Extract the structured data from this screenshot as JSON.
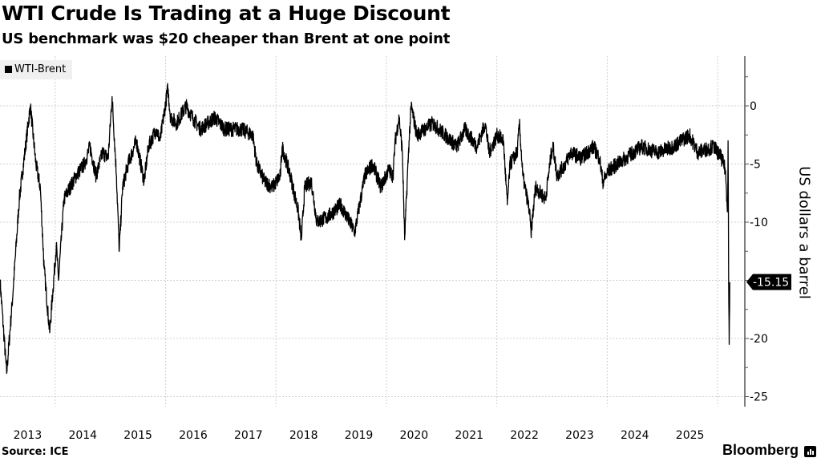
{
  "chart_data": {
    "type": "line",
    "title": "WTI Crude Is Trading at a Huge Discount",
    "subtitle": "US benchmark was $20 cheaper than Brent at one point",
    "ylabel": "US dollars a barrel",
    "xlabel": "",
    "legend": {
      "entries": [
        "WTI-Brent"
      ],
      "placement": "top-left"
    },
    "ylim": [
      -25.7,
      4.3
    ],
    "xlim": [
      2013.0,
      2026.25
    ],
    "yticks": [
      0,
      -5,
      -10,
      -15,
      -20,
      -25
    ],
    "ytick_labels": [
      "0",
      "-5",
      "-10",
      "-15",
      "-20",
      "-25"
    ],
    "xtick_labels": [
      "2013",
      "2014",
      "2015",
      "2016",
      "2017",
      "2018",
      "2019",
      "2020",
      "2021",
      "2022",
      "2023",
      "2024",
      "2025"
    ],
    "grid": true,
    "last_value_label": "-15.15",
    "series": [
      {
        "name": "WTI-Brent",
        "color": "#000000",
        "points": [
          [
            2013.0,
            -15
          ],
          [
            2013.12,
            -23
          ],
          [
            2013.22,
            -17
          ],
          [
            2013.35,
            -8
          ],
          [
            2013.45,
            -4
          ],
          [
            2013.55,
            0
          ],
          [
            2013.65,
            -5
          ],
          [
            2013.73,
            -7
          ],
          [
            2013.8,
            -14
          ],
          [
            2013.9,
            -19.5
          ],
          [
            2014.02,
            -12
          ],
          [
            2014.06,
            -15
          ],
          [
            2014.16,
            -8
          ],
          [
            2014.38,
            -6
          ],
          [
            2014.53,
            -5
          ],
          [
            2014.63,
            -3.5
          ],
          [
            2014.74,
            -6
          ],
          [
            2014.86,
            -4
          ],
          [
            2014.96,
            -4.5
          ],
          [
            2015.03,
            0.8
          ],
          [
            2015.11,
            -6
          ],
          [
            2015.16,
            -12.5
          ],
          [
            2015.22,
            -7
          ],
          [
            2015.32,
            -5
          ],
          [
            2015.47,
            -3
          ],
          [
            2015.61,
            -6.5
          ],
          [
            2015.69,
            -3.5
          ],
          [
            2015.83,
            -2
          ],
          [
            2015.9,
            -3
          ],
          [
            2016.04,
            1.5
          ],
          [
            2016.09,
            -1
          ],
          [
            2016.2,
            -1.5
          ],
          [
            2016.37,
            0
          ],
          [
            2016.49,
            -1
          ],
          [
            2016.63,
            -2
          ],
          [
            2016.89,
            -1
          ],
          [
            2017.07,
            -2
          ],
          [
            2017.36,
            -2
          ],
          [
            2017.58,
            -2.5
          ],
          [
            2017.65,
            -5
          ],
          [
            2017.79,
            -6.5
          ],
          [
            2017.94,
            -7
          ],
          [
            2018.08,
            -6
          ],
          [
            2018.11,
            -3.5
          ],
          [
            2018.26,
            -6
          ],
          [
            2018.4,
            -9
          ],
          [
            2018.46,
            -11.5
          ],
          [
            2018.52,
            -7
          ],
          [
            2018.64,
            -6.5
          ],
          [
            2018.74,
            -10
          ],
          [
            2018.95,
            -9.5
          ],
          [
            2019.17,
            -8.5
          ],
          [
            2019.39,
            -10.5
          ],
          [
            2019.42,
            -11
          ],
          [
            2019.61,
            -6
          ],
          [
            2019.75,
            -5
          ],
          [
            2019.9,
            -7
          ],
          [
            2020.04,
            -5.5
          ],
          [
            2020.12,
            -6
          ],
          [
            2020.16,
            -3
          ],
          [
            2020.23,
            -1
          ],
          [
            2020.29,
            -4
          ],
          [
            2020.33,
            -11.5
          ],
          [
            2020.41,
            -3
          ],
          [
            2020.45,
            0
          ],
          [
            2020.55,
            -2.5
          ],
          [
            2020.84,
            -1.5
          ],
          [
            2021.06,
            -2.5
          ],
          [
            2021.28,
            -3.5
          ],
          [
            2021.42,
            -2
          ],
          [
            2021.64,
            -3.5
          ],
          [
            2021.79,
            -1.5
          ],
          [
            2021.86,
            -4
          ],
          [
            2022.01,
            -2.5
          ],
          [
            2022.12,
            -3
          ],
          [
            2022.19,
            -8.5
          ],
          [
            2022.24,
            -5
          ],
          [
            2022.37,
            -4
          ],
          [
            2022.41,
            -1.5
          ],
          [
            2022.47,
            -6
          ],
          [
            2022.59,
            -9
          ],
          [
            2022.62,
            -11
          ],
          [
            2022.7,
            -7
          ],
          [
            2022.88,
            -8
          ],
          [
            2022.99,
            -4
          ],
          [
            2023.02,
            -3.5
          ],
          [
            2023.09,
            -6
          ],
          [
            2023.24,
            -5
          ],
          [
            2023.34,
            -4
          ],
          [
            2023.53,
            -4.5
          ],
          [
            2023.75,
            -3.5
          ],
          [
            2023.86,
            -4.5
          ],
          [
            2023.92,
            -6.5
          ],
          [
            2024.04,
            -5.5
          ],
          [
            2024.33,
            -4.5
          ],
          [
            2024.62,
            -3.5
          ],
          [
            2024.91,
            -4
          ],
          [
            2025.2,
            -3.5
          ],
          [
            2025.49,
            -2.5
          ],
          [
            2025.64,
            -4
          ],
          [
            2025.93,
            -3.5
          ],
          [
            2026.07,
            -4.5
          ],
          [
            2026.14,
            -5.5
          ],
          [
            2026.18,
            -9
          ],
          [
            2026.19,
            -3
          ],
          [
            2026.2,
            -15
          ],
          [
            2026.21,
            -20.5
          ],
          [
            2026.22,
            -15.15
          ]
        ]
      }
    ]
  },
  "footer": {
    "source": "Source: ICE",
    "brand": "Bloomberg"
  }
}
